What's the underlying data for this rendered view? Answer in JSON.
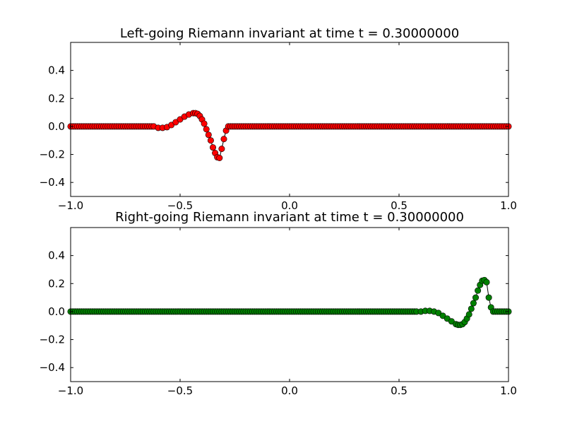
{
  "chart_data": [
    {
      "type": "scatter",
      "title": "Left-going Riemann invariant at time t =     0.30000000",
      "xlim": [
        -1.0,
        1.0
      ],
      "ylim": [
        -0.5,
        0.6
      ],
      "xticks": [
        -1.0,
        -0.5,
        0.0,
        0.5,
        1.0
      ],
      "xtick_labels": [
        "−1.0",
        "−0.5",
        "0.0",
        "0.5",
        "1.0"
      ],
      "yticks": [
        -0.4,
        -0.2,
        0.0,
        0.2,
        0.4
      ],
      "ytick_labels": [
        "−0.4",
        "−0.2",
        "0.0",
        "0.2",
        "0.4"
      ],
      "grid": false,
      "marker_color": "#ff0000",
      "line_color": "#000000",
      "series": [
        {
          "x": [
            -0.62,
            -0.6,
            -0.58,
            -0.56,
            -0.54,
            -0.52,
            -0.5,
            -0.48,
            -0.46,
            -0.44,
            -0.43,
            -0.42,
            -0.41,
            -0.4,
            -0.39,
            -0.38,
            -0.37,
            -0.36,
            -0.35,
            -0.34,
            -0.33,
            -0.32,
            -0.31,
            -0.3,
            -0.29,
            -0.28
          ],
          "y": [
            0.0,
            -0.01,
            -0.01,
            -0.005,
            0.01,
            0.03,
            0.05,
            0.07,
            0.085,
            0.095,
            0.095,
            0.09,
            0.075,
            0.05,
            0.02,
            -0.02,
            -0.06,
            -0.1,
            -0.15,
            -0.19,
            -0.22,
            -0.225,
            -0.16,
            -0.09,
            -0.03,
            0.0
          ],
          "baseline": 0.0,
          "dense_from": -1.0,
          "dense_to": 1.0,
          "dense_step": 0.01
        }
      ]
    },
    {
      "type": "scatter",
      "title": "Right-going Riemann invariant at time t =     0.30000000",
      "xlim": [
        -1.0,
        1.0
      ],
      "ylim": [
        -0.5,
        0.6
      ],
      "xticks": [
        -1.0,
        -0.5,
        0.0,
        0.5,
        1.0
      ],
      "xtick_labels": [
        "−1.0",
        "−0.5",
        "0.0",
        "0.5",
        "1.0"
      ],
      "yticks": [
        -0.4,
        -0.2,
        0.0,
        0.2,
        0.4
      ],
      "ytick_labels": [
        "−0.4",
        "−0.2",
        "0.0",
        "0.2",
        "0.4"
      ],
      "grid": false,
      "marker_color": "#008000",
      "line_color": "#000000",
      "series": [
        {
          "x": [
            0.58,
            0.6,
            0.62,
            0.64,
            0.66,
            0.68,
            0.7,
            0.72,
            0.74,
            0.76,
            0.77,
            0.78,
            0.79,
            0.8,
            0.81,
            0.82,
            0.83,
            0.84,
            0.85,
            0.86,
            0.87,
            0.88,
            0.89,
            0.9,
            0.91,
            0.92,
            0.93
          ],
          "y": [
            0.0,
            0.0,
            0.005,
            0.005,
            0.0,
            -0.01,
            -0.03,
            -0.05,
            -0.07,
            -0.09,
            -0.095,
            -0.095,
            -0.09,
            -0.075,
            -0.05,
            -0.02,
            0.02,
            0.06,
            0.1,
            0.15,
            0.19,
            0.22,
            0.225,
            0.21,
            0.1,
            0.03,
            0.0
          ],
          "baseline": 0.0,
          "dense_from": -1.0,
          "dense_to": 1.0,
          "dense_step": 0.01
        }
      ]
    }
  ]
}
